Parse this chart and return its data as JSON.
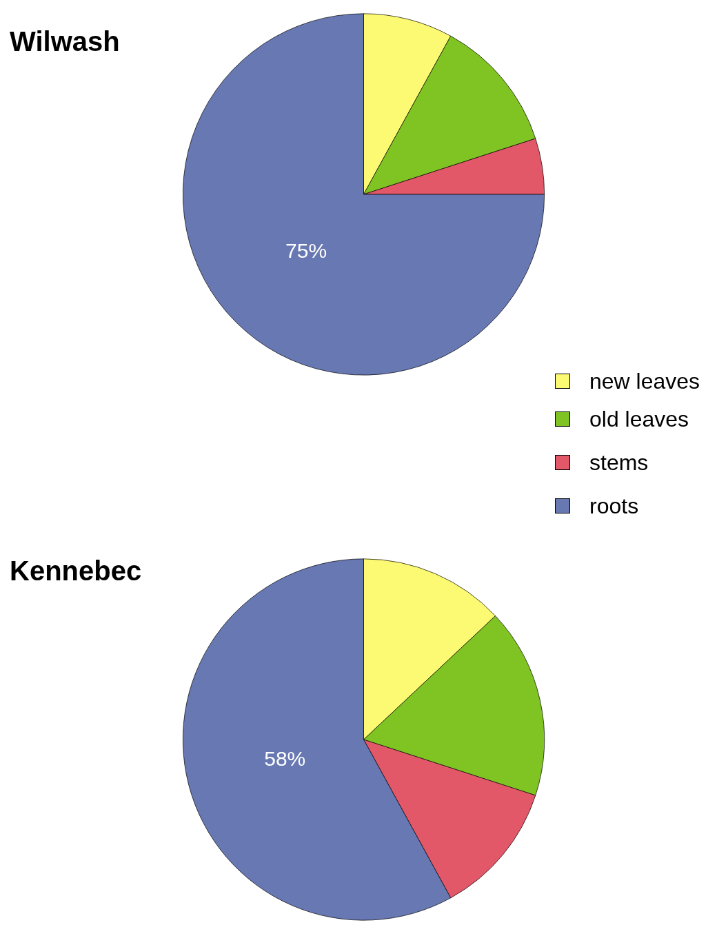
{
  "chart_data": [
    {
      "type": "pie",
      "title": "Wilwash",
      "categories": [
        "new leaves",
        "old leaves",
        "stems",
        "roots"
      ],
      "values": [
        8,
        12,
        5,
        75
      ],
      "colors": [
        "#fcfa72",
        "#80c424",
        "#e25868",
        "#6778b2"
      ],
      "value_labels": [
        null,
        null,
        null,
        "75%"
      ],
      "legend": "right"
    },
    {
      "type": "pie",
      "title": "Kennebec",
      "categories": [
        null,
        null,
        null,
        null
      ],
      "values": [
        13,
        17,
        12,
        58
      ],
      "colors": [
        "#fcfa72",
        "#80c424",
        "#e25868",
        "#6778b2"
      ],
      "value_labels": [
        null,
        null,
        null,
        "58%"
      ]
    }
  ]
}
